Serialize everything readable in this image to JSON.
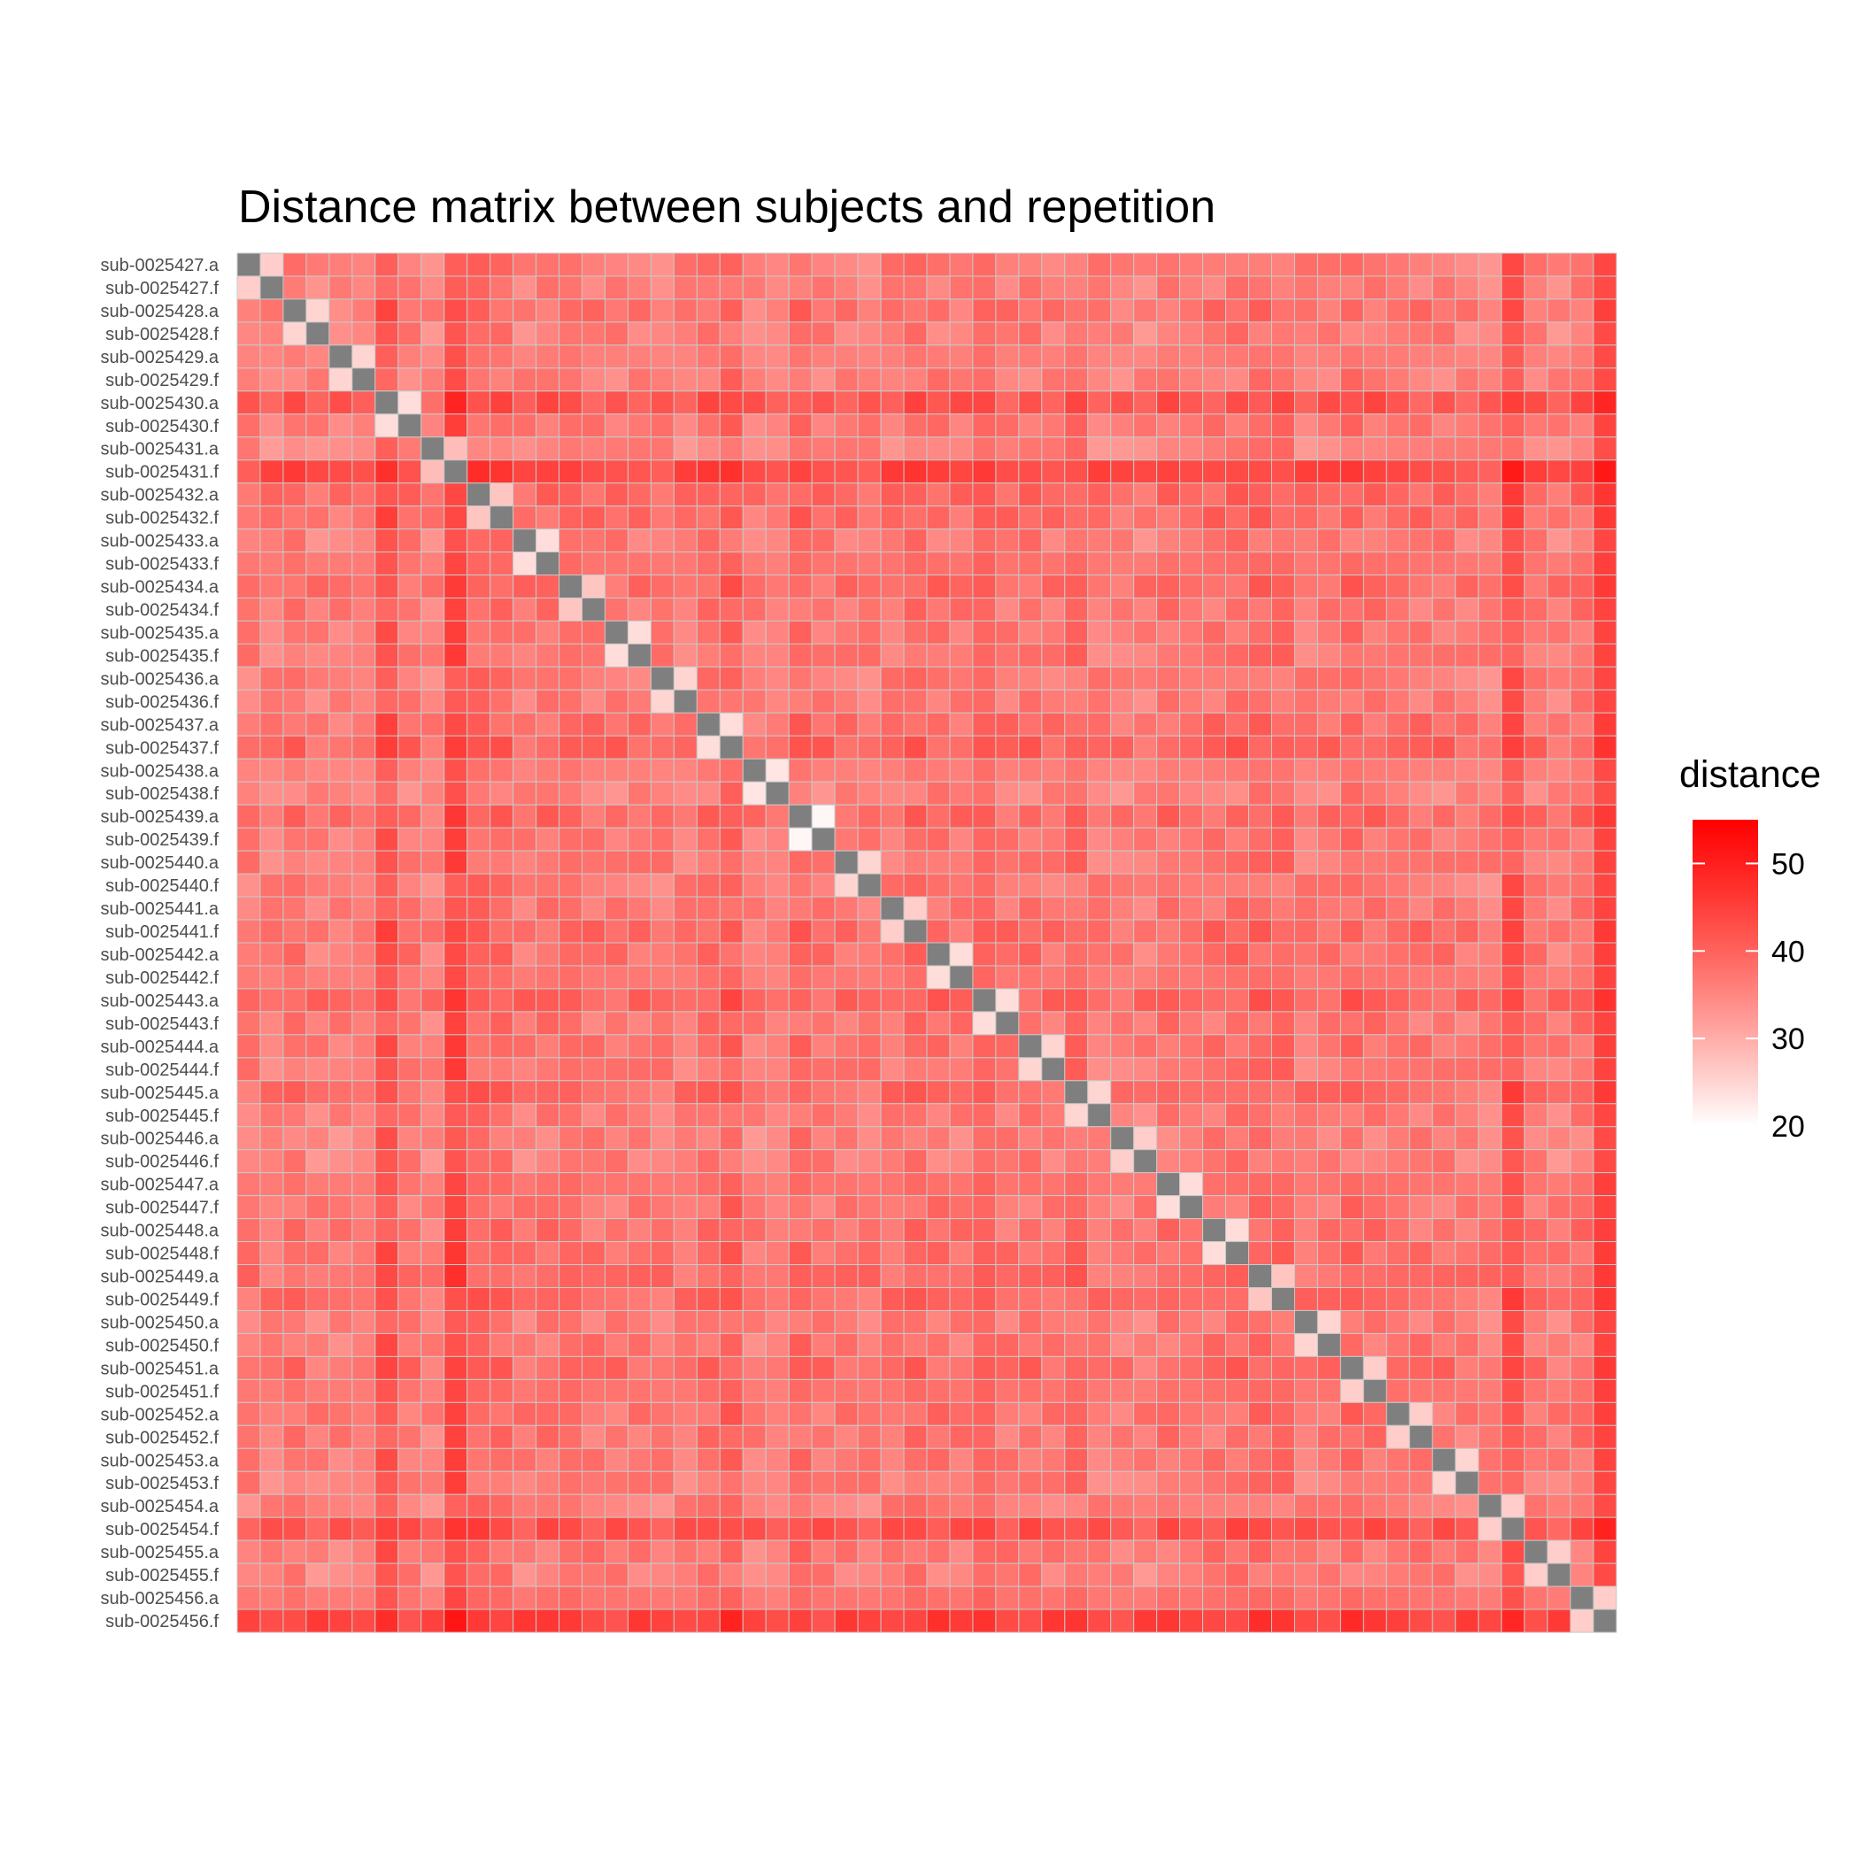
{
  "chart_data": {
    "type": "heatmap",
    "title": "Distance matrix between subjects and repetition",
    "labels": [
      "sub-0025427.a",
      "sub-0025427.f",
      "sub-0025428.a",
      "sub-0025428.f",
      "sub-0025429.a",
      "sub-0025429.f",
      "sub-0025430.a",
      "sub-0025430.f",
      "sub-0025431.a",
      "sub-0025431.f",
      "sub-0025432.a",
      "sub-0025432.f",
      "sub-0025433.a",
      "sub-0025433.f",
      "sub-0025434.a",
      "sub-0025434.f",
      "sub-0025435.a",
      "sub-0025435.f",
      "sub-0025436.a",
      "sub-0025436.f",
      "sub-0025437.a",
      "sub-0025437.f",
      "sub-0025438.a",
      "sub-0025438.f",
      "sub-0025439.a",
      "sub-0025439.f",
      "sub-0025440.a",
      "sub-0025440.f",
      "sub-0025441.a",
      "sub-0025441.f",
      "sub-0025442.a",
      "sub-0025442.f",
      "sub-0025443.a",
      "sub-0025443.f",
      "sub-0025444.a",
      "sub-0025444.f",
      "sub-0025445.a",
      "sub-0025445.f",
      "sub-0025446.a",
      "sub-0025446.f",
      "sub-0025447.a",
      "sub-0025447.f",
      "sub-0025448.a",
      "sub-0025448.f",
      "sub-0025449.a",
      "sub-0025449.f",
      "sub-0025450.a",
      "sub-0025450.f",
      "sub-0025451.a",
      "sub-0025451.f",
      "sub-0025452.a",
      "sub-0025452.f",
      "sub-0025453.a",
      "sub-0025453.f",
      "sub-0025454.a",
      "sub-0025454.f",
      "sub-0025455.a",
      "sub-0025455.f",
      "sub-0025456.a",
      "sub-0025456.f"
    ],
    "row_base": [
      36,
      35,
      38,
      35,
      35,
      35,
      46,
      37,
      34,
      50,
      41,
      40,
      36,
      38,
      40,
      37,
      37,
      37,
      36,
      36,
      39,
      42,
      35,
      34,
      40,
      37,
      37,
      36,
      37,
      40,
      38,
      37,
      42,
      37,
      38,
      37,
      40,
      36,
      35,
      35,
      38,
      37,
      38,
      39,
      40,
      40,
      36,
      37,
      40,
      38,
      38,
      37,
      37,
      36,
      35,
      47,
      37,
      35,
      38,
      52
    ],
    "col_base": [
      36,
      35,
      38,
      35,
      35,
      35,
      46,
      37,
      34,
      50,
      41,
      40,
      36,
      38,
      40,
      37,
      37,
      37,
      36,
      36,
      39,
      42,
      35,
      34,
      40,
      37,
      37,
      36,
      37,
      40,
      38,
      37,
      42,
      37,
      38,
      37,
      40,
      36,
      35,
      35,
      38,
      37,
      38,
      39,
      40,
      40,
      36,
      37,
      40,
      38,
      38,
      37,
      37,
      36,
      35,
      47,
      37,
      35,
      38,
      52
    ],
    "pair_distance": [
      26,
      25,
      25,
      24,
      28,
      27,
      24,
      27,
      24,
      25,
      24,
      23,
      21,
      25,
      26,
      24,
      24,
      25,
      25,
      26,
      24,
      24,
      27,
      25,
      26,
      26,
      25,
      26,
      26,
      26
    ],
    "diagonal": "NA",
    "na_color": "#7f7f7f",
    "cell_border_color": "#c8c8c8",
    "legend": {
      "title": "distance",
      "position": "right",
      "min": 20,
      "max": 55,
      "ticks": [
        20,
        30,
        40,
        50
      ],
      "low_color": "#ffffff",
      "high_color": "#ff0000"
    }
  }
}
